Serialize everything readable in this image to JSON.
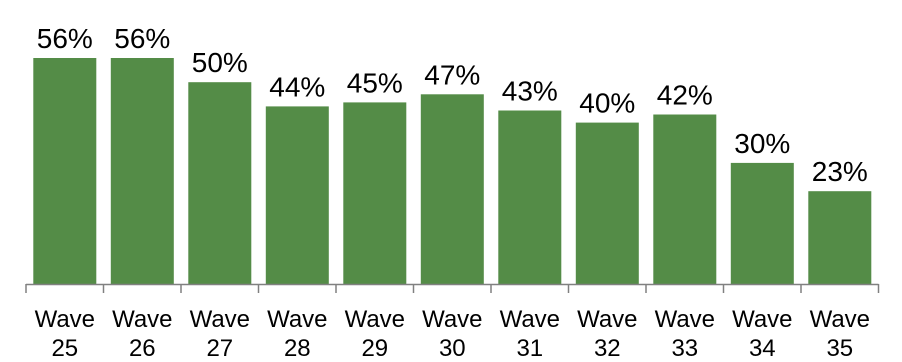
{
  "chart_data": {
    "type": "bar",
    "categories": [
      [
        "Wave",
        "25"
      ],
      [
        "Wave",
        "26"
      ],
      [
        "Wave",
        "27"
      ],
      [
        "Wave",
        "28"
      ],
      [
        "Wave",
        "29"
      ],
      [
        "Wave",
        "30"
      ],
      [
        "Wave",
        "31"
      ],
      [
        "Wave",
        "32"
      ],
      [
        "Wave",
        "33"
      ],
      [
        "Wave",
        "34"
      ],
      [
        "Wave",
        "35"
      ]
    ],
    "values": [
      56,
      56,
      50,
      44,
      45,
      47,
      43,
      40,
      42,
      30,
      23
    ],
    "data_labels": [
      "56%",
      "56%",
      "50%",
      "44%",
      "45%",
      "47%",
      "43%",
      "40%",
      "42%",
      "30%",
      "23%"
    ],
    "unit": "%",
    "ylim": [
      0,
      56
    ],
    "bar_color": "#548c47",
    "axis_color": "#808080",
    "grid": false,
    "legend": "none"
  }
}
